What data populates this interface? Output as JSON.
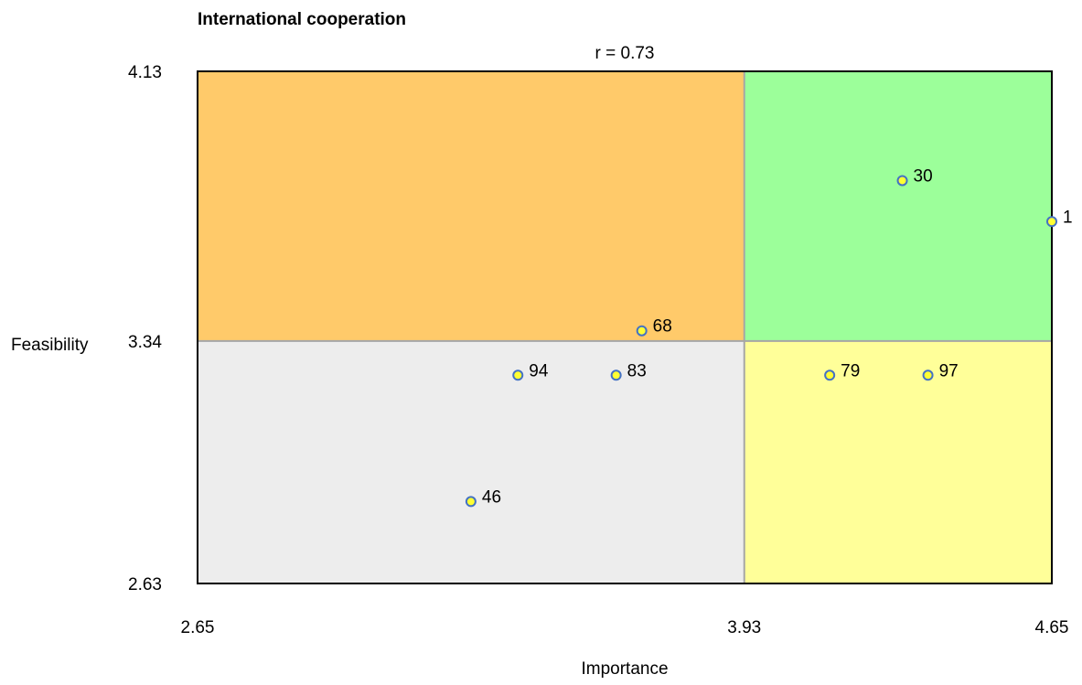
{
  "chart_data": {
    "type": "scatter",
    "title": "International cooperation",
    "subtitle": "r = 0.73",
    "xlabel": "Importance",
    "ylabel": "Feasibility",
    "xlim": [
      2.65,
      4.65
    ],
    "ylim": [
      2.63,
      4.13
    ],
    "x_ticks": [
      "2.65",
      "3.93",
      "4.65"
    ],
    "y_ticks": [
      "4.13",
      "3.34",
      "2.63"
    ],
    "x_divider": 3.93,
    "y_divider": 3.34,
    "grid": false,
    "quadrants": [
      {
        "position": "top-left",
        "color": "#FFCA6A"
      },
      {
        "position": "top-right",
        "color": "#9CFF9A"
      },
      {
        "position": "bottom-left",
        "color": "#EDEDED"
      },
      {
        "position": "bottom-right",
        "color": "#FFFF99"
      }
    ],
    "point_fill": "#FFFF33",
    "point_stroke": "#4472C4",
    "points": [
      {
        "label": "1",
        "x": 4.65,
        "y": 3.69
      },
      {
        "label": "30",
        "x": 4.3,
        "y": 3.81
      },
      {
        "label": "68",
        "x": 3.69,
        "y": 3.37
      },
      {
        "label": "94",
        "x": 3.4,
        "y": 3.24
      },
      {
        "label": "83",
        "x": 3.63,
        "y": 3.24
      },
      {
        "label": "79",
        "x": 4.13,
        "y": 3.24
      },
      {
        "label": "97",
        "x": 4.36,
        "y": 3.24
      },
      {
        "label": "46",
        "x": 3.29,
        "y": 2.87
      }
    ]
  }
}
